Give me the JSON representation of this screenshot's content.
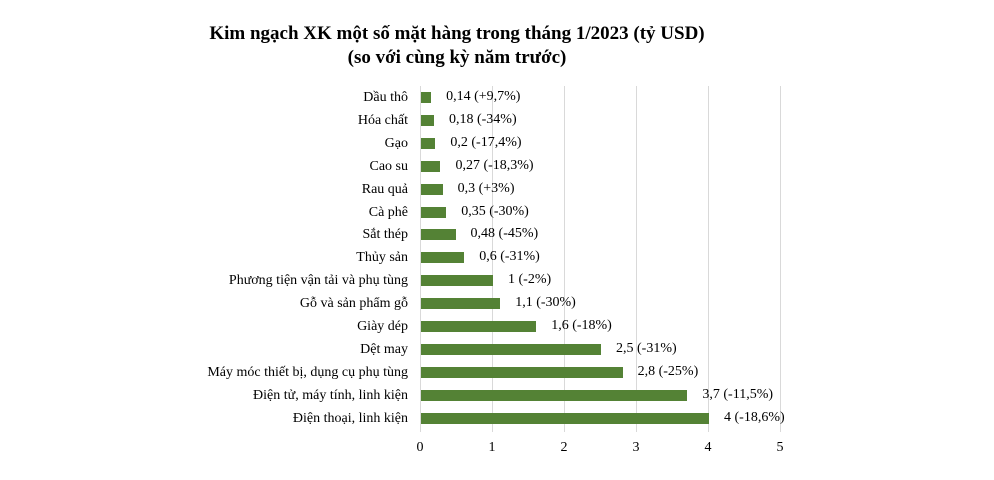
{
  "chart_data": {
    "type": "bar",
    "orientation": "horizontal",
    "title": "Kim ngạch XK một số mặt hàng trong tháng 1/2023 (tỷ USD)",
    "subtitle": "(so với cùng kỳ năm trước)",
    "xlabel": "",
    "ylabel": "",
    "xlim": [
      0,
      5
    ],
    "xticks": [
      "0",
      "1",
      "2",
      "3",
      "4",
      "5"
    ],
    "grid": true,
    "legend": null,
    "bar_color": "#548235",
    "categories": [
      "Dầu thô",
      "Hóa chất",
      "Gạo",
      "Cao su",
      "Rau quả",
      "Cà phê",
      "Sắt thép",
      "Thủy sản",
      "Phương tiện vận tải và phụ tùng",
      "Gỗ và sản phẩm gỗ",
      "Giày dép",
      "Dệt may",
      "Máy móc thiết bị, dụng cụ phụ tùng",
      "Điện tử, máy tính, linh kiện",
      "Điện thoại, linh kiện"
    ],
    "values": [
      0.14,
      0.18,
      0.2,
      0.27,
      0.3,
      0.35,
      0.48,
      0.6,
      1,
      1.1,
      1.6,
      2.5,
      2.8,
      3.7,
      4
    ],
    "change_pct": [
      "+9,7%",
      "-34%",
      "-17,4%",
      "-18,3%",
      "+3%",
      "-30%",
      "-45%",
      "-31%",
      "-2%",
      "-30%",
      "-18%",
      "-31%",
      "-25%",
      "-11,5%",
      "-18,6%"
    ],
    "data_labels": [
      "0,14 (+9,7%)",
      "0,18 (-34%)",
      "0,2 (-17,4%)",
      "0,27 (-18,3%)",
      "0,3 (+3%)",
      "0,35 (-30%)",
      "0,48 (-45%)",
      "0,6 (-31%)",
      "1 (-2%)",
      "1,1 (-30%)",
      "1,6 (-18%)",
      "2,5 (-31%)",
      "2,8 (-25%)",
      "3,7 (-11,5%)",
      "4 (-18,6%)"
    ]
  }
}
